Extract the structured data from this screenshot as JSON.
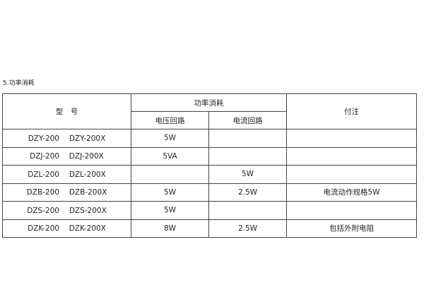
{
  "title": "5.功率消耗",
  "headers": {
    "model": "型　号",
    "power": "功率消耗",
    "voltage": "电压回路",
    "current": "电流回路",
    "note": "付注"
  },
  "rows": [
    {
      "model": "DZY-200　 DZY-200X",
      "voltage": "5W",
      "current": "",
      "note": ""
    },
    {
      "model": "DZJ-200　 DZJ-200X",
      "voltage": "5VA",
      "current": "",
      "note": ""
    },
    {
      "model": "DZL-200　 DZL-200X",
      "voltage": "",
      "current": "5W",
      "note": ""
    },
    {
      "model": "DZB-200　 DZB-200X",
      "voltage": "5W",
      "current": "2.5W",
      "note": "电流动作规格5W"
    },
    {
      "model": "DZS-200　 DZS-200X",
      "voltage": "5W",
      "current": "",
      "note": ""
    },
    {
      "model": "DZK-200　 DZK-200X",
      "voltage": "8W",
      "current": "2.5W",
      "note": "包括外附电阻"
    }
  ]
}
